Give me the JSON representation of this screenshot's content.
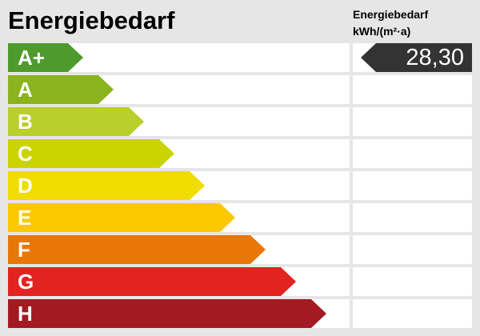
{
  "title": "Energiebedarf",
  "value_header": {
    "line1": "Energiebedarf",
    "line2": "kWh/(m²·a)"
  },
  "classes": [
    {
      "label": "A+",
      "color": "#4f9a2c"
    },
    {
      "label": "A",
      "color": "#8ab31e"
    },
    {
      "label": "B",
      "color": "#b9cf2c"
    },
    {
      "label": "C",
      "color": "#cbd400"
    },
    {
      "label": "D",
      "color": "#f0dc00"
    },
    {
      "label": "E",
      "color": "#fdc800"
    },
    {
      "label": "F",
      "color": "#e97707"
    },
    {
      "label": "G",
      "color": "#e2231f"
    },
    {
      "label": "H",
      "color": "#a31a22"
    }
  ],
  "value": {
    "text": "28,30",
    "class_index": 0,
    "color": "#333333"
  }
}
